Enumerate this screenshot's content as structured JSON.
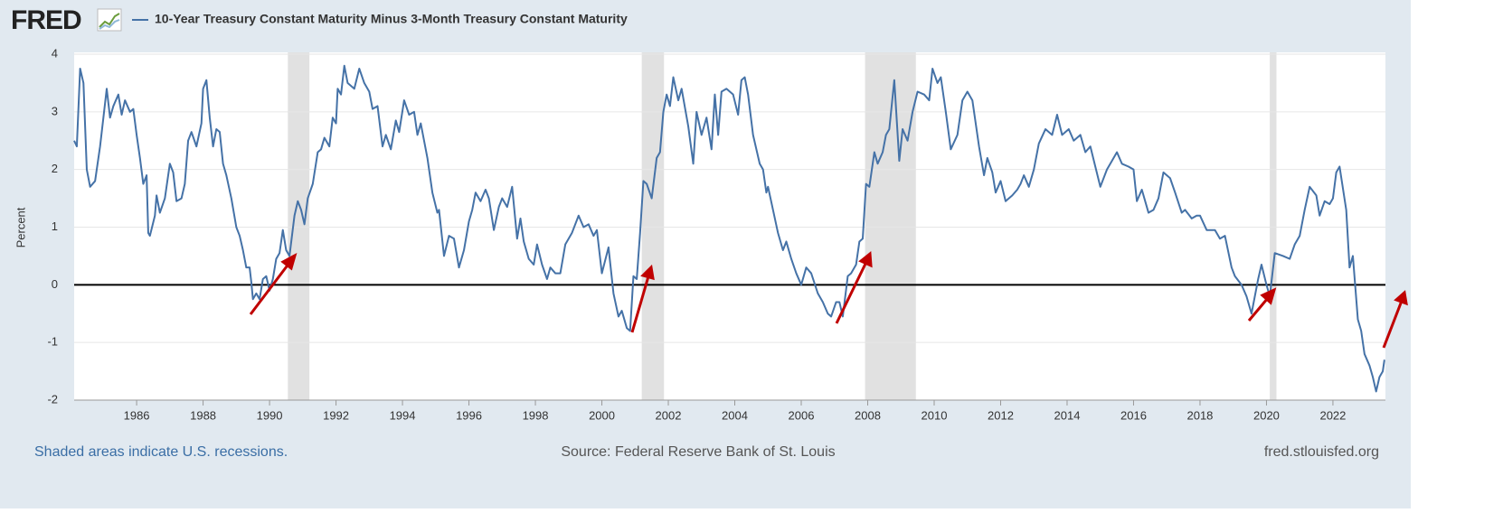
{
  "chart_data": {
    "type": "line",
    "logo": "FRED",
    "title": "10-Year Treasury Constant Maturity Minus 3-Month Treasury Constant Maturity",
    "ylabel": "Percent",
    "footnote": "Shaded areas indicate U.S. recessions.",
    "source": "Source: Federal Reserve Bank of St. Louis",
    "site": "fred.stlouisfed.org",
    "xlim": [
      1984.12,
      2023.58
    ],
    "xticks": [
      1986,
      1988,
      1990,
      1992,
      1994,
      1996,
      1998,
      2000,
      2002,
      2004,
      2006,
      2008,
      2010,
      2012,
      2014,
      2016,
      2018,
      2020,
      2022
    ],
    "ylim": [
      -2,
      4
    ],
    "yticks": [
      -2,
      -1,
      0,
      1,
      2,
      3,
      4
    ],
    "grid": true,
    "reference_line": 0,
    "recessions": [
      [
        1990.55,
        1991.2
      ],
      [
        2001.2,
        2001.87
      ],
      [
        2007.92,
        2009.45
      ],
      [
        2020.1,
        2020.3
      ]
    ],
    "series": [
      {
        "name": "10-Year Treasury Constant Maturity Minus 3-Month Treasury Constant Maturity",
        "color": "#4572a7",
        "x": [
          1984.12,
          1984.2,
          1984.3,
          1984.4,
          1984.5,
          1984.6,
          1984.75,
          1984.9,
          1985.0,
          1985.1,
          1985.2,
          1985.3,
          1985.45,
          1985.55,
          1985.65,
          1985.8,
          1985.9,
          1986.0,
          1986.1,
          1986.2,
          1986.3,
          1986.35,
          1986.4,
          1986.55,
          1986.6,
          1986.7,
          1986.85,
          1987.0,
          1987.1,
          1987.2,
          1987.35,
          1987.45,
          1987.55,
          1987.65,
          1987.8,
          1987.95,
          1988.0,
          1988.1,
          1988.2,
          1988.3,
          1988.4,
          1988.5,
          1988.6,
          1988.7,
          1988.85,
          1989.0,
          1989.1,
          1989.2,
          1989.3,
          1989.4,
          1989.45,
          1989.5,
          1989.6,
          1989.7,
          1989.8,
          1989.9,
          1990.0,
          1990.1,
          1990.2,
          1990.3,
          1990.4,
          1990.5,
          1990.6,
          1990.75,
          1990.85,
          1990.95,
          1991.05,
          1991.15,
          1991.3,
          1991.45,
          1991.55,
          1991.65,
          1991.8,
          1991.9,
          1992.0,
          1992.05,
          1992.15,
          1992.25,
          1992.35,
          1992.55,
          1992.7,
          1992.85,
          1993.0,
          1993.1,
          1993.25,
          1993.4,
          1993.5,
          1993.65,
          1993.8,
          1993.9,
          1994.05,
          1994.2,
          1994.35,
          1994.45,
          1994.55,
          1994.75,
          1994.9,
          1995.05,
          1995.1,
          1995.25,
          1995.4,
          1995.55,
          1995.7,
          1995.85,
          1996.0,
          1996.1,
          1996.2,
          1996.35,
          1996.5,
          1996.6,
          1996.75,
          1996.9,
          1997.0,
          1997.15,
          1997.3,
          1997.45,
          1997.55,
          1997.65,
          1997.8,
          1997.95,
          1998.05,
          1998.2,
          1998.35,
          1998.45,
          1998.6,
          1998.75,
          1998.9,
          1999.1,
          1999.3,
          1999.45,
          1999.6,
          1999.75,
          1999.85,
          2000.0,
          2000.2,
          2000.35,
          2000.5,
          2000.6,
          2000.75,
          2000.85,
          2000.95,
          2001.05,
          2001.15,
          2001.25,
          2001.35,
          2001.5,
          2001.65,
          2001.75,
          2001.85,
          2001.95,
          2002.05,
          2002.15,
          2002.3,
          2002.4,
          2002.6,
          2002.75,
          2002.85,
          2003.0,
          2003.15,
          2003.3,
          2003.4,
          2003.5,
          2003.6,
          2003.75,
          2003.95,
          2004.1,
          2004.2,
          2004.3,
          2004.4,
          2004.55,
          2004.75,
          2004.85,
          2004.95,
          2005.0,
          2005.15,
          2005.3,
          2005.45,
          2005.55,
          2005.7,
          2005.85,
          2006.0,
          2006.15,
          2006.3,
          2006.5,
          2006.65,
          2006.8,
          2006.9,
          2007.05,
          2007.15,
          2007.25,
          2007.4,
          2007.5,
          2007.65,
          2007.75,
          2007.85,
          2007.95,
          2008.05,
          2008.2,
          2008.3,
          2008.45,
          2008.55,
          2008.65,
          2008.8,
          2008.95,
          2009.05,
          2009.2,
          2009.35,
          2009.5,
          2009.7,
          2009.85,
          2009.95,
          2010.1,
          2010.2,
          2010.35,
          2010.5,
          2010.7,
          2010.85,
          2011.0,
          2011.15,
          2011.35,
          2011.5,
          2011.6,
          2011.75,
          2011.85,
          2012.0,
          2012.15,
          2012.35,
          2012.5,
          2012.6,
          2012.7,
          2012.85,
          2013.0,
          2013.15,
          2013.35,
          2013.55,
          2013.7,
          2013.85,
          2014.05,
          2014.2,
          2014.4,
          2014.55,
          2014.7,
          2014.85,
          2015.0,
          2015.2,
          2015.35,
          2015.5,
          2015.65,
          2015.85,
          2016.0,
          2016.1,
          2016.25,
          2016.45,
          2016.6,
          2016.75,
          2016.9,
          2017.1,
          2017.25,
          2017.45,
          2017.55,
          2017.75,
          2017.9,
          2018.0,
          2018.2,
          2018.45,
          2018.6,
          2018.75,
          2018.95,
          2019.05,
          2019.25,
          2019.4,
          2019.55,
          2019.75,
          2019.85,
          2020.0,
          2020.1,
          2020.25,
          2020.5,
          2020.7,
          2020.85,
          2021.0,
          2021.15,
          2021.3,
          2021.5,
          2021.6,
          2021.75,
          2021.9,
          2022.0,
          2022.1,
          2022.2,
          2022.4,
          2022.5,
          2022.6,
          2022.75,
          2022.85,
          2022.95,
          2023.1,
          2023.2,
          2023.3,
          2023.4,
          2023.5,
          2023.55
        ],
        "values": [
          2.5,
          2.4,
          3.75,
          3.5,
          2.0,
          1.7,
          1.8,
          2.4,
          2.9,
          3.4,
          2.9,
          3.1,
          3.3,
          2.95,
          3.2,
          3.0,
          3.05,
          2.6,
          2.2,
          1.75,
          1.9,
          0.9,
          0.85,
          1.2,
          1.55,
          1.25,
          1.5,
          2.1,
          1.95,
          1.45,
          1.5,
          1.75,
          2.5,
          2.65,
          2.4,
          2.8,
          3.4,
          3.55,
          2.9,
          2.4,
          2.7,
          2.65,
          2.1,
          1.9,
          1.5,
          1.0,
          0.85,
          0.6,
          0.3,
          0.3,
          0.05,
          -0.25,
          -0.15,
          -0.25,
          0.1,
          0.15,
          -0.1,
          0.1,
          0.45,
          0.55,
          0.95,
          0.6,
          0.5,
          1.2,
          1.45,
          1.3,
          1.05,
          1.5,
          1.75,
          2.3,
          2.35,
          2.55,
          2.4,
          2.9,
          2.8,
          3.4,
          3.3,
          3.8,
          3.5,
          3.4,
          3.75,
          3.5,
          3.35,
          3.05,
          3.1,
          2.4,
          2.6,
          2.35,
          2.85,
          2.65,
          3.2,
          2.95,
          3.0,
          2.6,
          2.8,
          2.2,
          1.6,
          1.25,
          1.3,
          0.5,
          0.85,
          0.8,
          0.3,
          0.6,
          1.1,
          1.3,
          1.6,
          1.45,
          1.65,
          1.5,
          0.95,
          1.35,
          1.5,
          1.35,
          1.7,
          0.8,
          1.15,
          0.75,
          0.45,
          0.35,
          0.7,
          0.35,
          0.1,
          0.3,
          0.2,
          0.2,
          0.7,
          0.9,
          1.2,
          1.0,
          1.05,
          0.85,
          0.95,
          0.2,
          0.65,
          -0.15,
          -0.55,
          -0.45,
          -0.75,
          -0.8,
          0.15,
          0.1,
          0.9,
          1.8,
          1.75,
          1.5,
          2.2,
          2.3,
          3.0,
          3.3,
          3.1,
          3.6,
          3.2,
          3.4,
          2.75,
          2.1,
          3.0,
          2.6,
          2.9,
          2.35,
          3.3,
          2.6,
          3.35,
          3.4,
          3.3,
          2.95,
          3.55,
          3.6,
          3.3,
          2.6,
          2.1,
          2.0,
          1.6,
          1.7,
          1.3,
          0.9,
          0.6,
          0.75,
          0.45,
          0.2,
          0.0,
          0.3,
          0.2,
          -0.15,
          -0.3,
          -0.5,
          -0.55,
          -0.3,
          -0.3,
          -0.55,
          0.15,
          0.2,
          0.35,
          0.75,
          0.8,
          1.75,
          1.7,
          2.3,
          2.1,
          2.3,
          2.6,
          2.7,
          3.55,
          2.15,
          2.7,
          2.5,
          3.0,
          3.35,
          3.3,
          3.2,
          3.75,
          3.5,
          3.6,
          3.0,
          2.35,
          2.6,
          3.2,
          3.35,
          3.2,
          2.4,
          1.9,
          2.2,
          1.95,
          1.6,
          1.8,
          1.45,
          1.55,
          1.65,
          1.75,
          1.9,
          1.7,
          2.0,
          2.45,
          2.7,
          2.6,
          2.95,
          2.6,
          2.7,
          2.5,
          2.6,
          2.3,
          2.4,
          2.05,
          1.7,
          2.0,
          2.15,
          2.3,
          2.1,
          2.05,
          2.0,
          1.45,
          1.65,
          1.25,
          1.3,
          1.5,
          1.95,
          1.85,
          1.6,
          1.25,
          1.3,
          1.15,
          1.2,
          1.2,
          0.95,
          0.95,
          0.8,
          0.85,
          0.3,
          0.15,
          0.0,
          -0.2,
          -0.5,
          0.1,
          0.35,
          0.0,
          -0.2,
          0.55,
          0.5,
          0.45,
          0.7,
          0.85,
          1.3,
          1.7,
          1.55,
          1.2,
          1.45,
          1.4,
          1.5,
          1.95,
          2.05,
          1.3,
          0.3,
          0.5,
          -0.6,
          -0.8,
          -1.2,
          -1.4,
          -1.6,
          -1.85,
          -1.6,
          -1.5,
          -1.3
        ]
      }
    ]
  }
}
